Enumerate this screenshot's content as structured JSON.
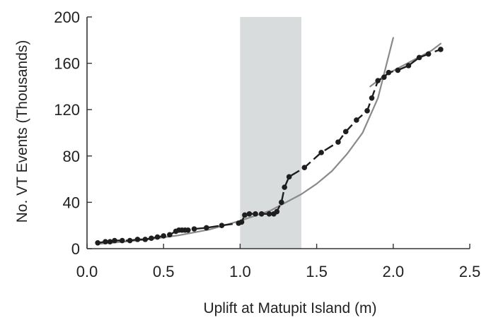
{
  "chart_data": {
    "type": "scatter",
    "xlabel": "Uplift at Matupit Island  (m)",
    "ylabel": "No. VT Events (Thousands)",
    "xlim": [
      0,
      2.5
    ],
    "ylim": [
      0,
      200
    ],
    "xticks": [
      "0.0",
      "0.5",
      "1.0",
      "1.5",
      "2.0",
      "2.5"
    ],
    "yticks": [
      "0",
      "40",
      "80",
      "120",
      "160",
      "200"
    ],
    "grid": false,
    "shaded_region": {
      "x_start": 1.0,
      "x_end": 1.4,
      "color": "#d9dcdc"
    },
    "series": [
      {
        "style": "dashed-line-with-markers",
        "color": "#1e1e1e",
        "x": [
          0.07,
          0.12,
          0.15,
          0.18,
          0.23,
          0.28,
          0.33,
          0.38,
          0.42,
          0.46,
          0.5,
          0.54,
          0.58,
          0.6,
          0.62,
          0.64,
          0.66,
          0.7,
          0.78,
          0.88,
          0.99,
          1.01,
          1.03,
          1.06,
          1.1,
          1.14,
          1.19,
          1.22,
          1.24,
          1.27,
          1.29,
          1.32,
          1.42,
          1.53,
          1.64,
          1.69,
          1.76,
          1.83,
          1.86,
          1.9,
          1.94,
          1.97,
          2.03,
          2.1,
          2.17,
          2.23,
          2.31
        ],
        "y": [
          5,
          6,
          6,
          7,
          7,
          7,
          8,
          8,
          9,
          10,
          11,
          12,
          15,
          16,
          16,
          16,
          16,
          17,
          18,
          20,
          22,
          23,
          29,
          30,
          30,
          30,
          30,
          30,
          32,
          40,
          53,
          62,
          70,
          83,
          92,
          101,
          111,
          119,
          130,
          145,
          148,
          152,
          154,
          158,
          165,
          168,
          172
        ]
      },
      {
        "style": "solid-line",
        "color": "#8a8a8a",
        "x": [
          0.07,
          0.2,
          0.4,
          0.6,
          0.8,
          1.0,
          1.2,
          1.4,
          1.5,
          1.6,
          1.7,
          1.8,
          1.9,
          2.0
        ],
        "y": [
          4,
          5.5,
          8,
          11.5,
          16.5,
          24,
          33,
          47,
          56,
          67,
          82,
          100,
          130,
          182
        ]
      },
      {
        "style": "solid-line",
        "color": "#8a8a8a",
        "x": [
          1.85,
          1.95,
          2.05,
          2.15,
          2.25,
          2.31
        ],
        "y": [
          140,
          150,
          157,
          164,
          171,
          177
        ]
      }
    ]
  }
}
